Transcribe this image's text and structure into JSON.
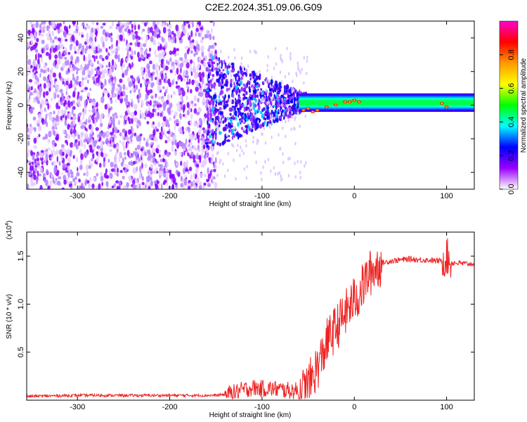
{
  "title": "C2E2.2024.351.09.06.G09",
  "chart_data": [
    {
      "type": "heatmap",
      "xlabel": "Height of straight line (km)",
      "ylabel": "Frequency (Hz)",
      "xlim": [
        -355,
        130
      ],
      "ylim": [
        -50,
        50
      ],
      "xticks": [
        -300,
        -200,
        -100,
        0,
        100
      ],
      "yticks": [
        -40,
        -20,
        0,
        20,
        40
      ],
      "colorbar": {
        "label": "Normalized spectral amplitude",
        "range": [
          0,
          1
        ],
        "ticks": [
          0.0,
          0.2,
          0.4,
          0.6,
          0.8
        ],
        "tick_labels": [
          "0.0",
          "0.2",
          "0.4",
          "0.6",
          "0.8"
        ],
        "colormap": [
          "#ffffff",
          "#9900ff",
          "#0000ff",
          "#00ffff",
          "#00ff00",
          "#ffff00",
          "#ff9900",
          "#ff0000",
          "#ff00cc"
        ]
      },
      "description_points": [
        {
          "x_range": [
            -355,
            -150
          ],
          "freq_spread": [
            -50,
            50
          ],
          "amplitude": 0.1
        },
        {
          "x_range": [
            -150,
            -60
          ],
          "freq_spread": [
            -20,
            20
          ],
          "amplitude": 0.3
        },
        {
          "x_range": [
            -60,
            130
          ],
          "freq_center": 1,
          "freq_halfwidth": 3,
          "amplitude": 0.6
        }
      ]
    },
    {
      "type": "line",
      "xlabel": "Height of straight line (km)",
      "ylabel": "SNR (10 * v/v)",
      "yscale_label": "(x10",
      "yscale_exp": "4",
      "xlim": [
        -355,
        130
      ],
      "ylim": [
        0,
        1.75
      ],
      "xticks": [
        -300,
        -200,
        -100,
        0,
        100
      ],
      "yticks": [
        0.5,
        1.0,
        1.5
      ],
      "ytick_labels": [
        "0.5",
        "1.0",
        "1.5"
      ],
      "series": [
        {
          "color": "#ee2222",
          "x": [
            -355,
            -300,
            -250,
            -200,
            -170,
            -150,
            -140,
            -130,
            -120,
            -110,
            -100,
            -90,
            -80,
            -70,
            -60,
            -55,
            -50,
            -45,
            -40,
            -35,
            -30,
            -25,
            -20,
            -15,
            -10,
            -5,
            0,
            5,
            10,
            15,
            20,
            25,
            30,
            40,
            50,
            60,
            70,
            80,
            90,
            95,
            100,
            105,
            110,
            120,
            130
          ],
          "y": [
            0.04,
            0.05,
            0.05,
            0.05,
            0.05,
            0.05,
            0.06,
            0.08,
            0.11,
            0.13,
            0.12,
            0.12,
            0.11,
            0.1,
            0.1,
            0.1,
            0.15,
            0.25,
            0.35,
            0.45,
            0.6,
            0.68,
            0.75,
            0.82,
            0.9,
            0.98,
            1.05,
            1.1,
            1.2,
            1.3,
            1.35,
            1.4,
            1.43,
            1.45,
            1.46,
            1.47,
            1.46,
            1.46,
            1.45,
            1.45,
            1.5,
            1.43,
            1.43,
            1.42,
            1.42
          ]
        }
      ]
    }
  ]
}
